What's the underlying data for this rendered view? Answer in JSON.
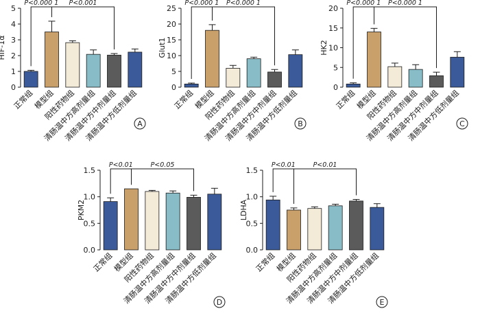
{
  "colors": {
    "group_fills": [
      "#3b5a9a",
      "#c9a06a",
      "#f3ead8",
      "#88bcc6",
      "#5b5b5b",
      "#3b5a9a"
    ],
    "bar_outline": "#1a1a1a",
    "axis": "#1a1a1a"
  },
  "chart_data": [
    {
      "type": "bar",
      "panel": "A",
      "ylabel": "HIF-1α",
      "categories": [
        "正常组",
        "模型组",
        "阳性药物组",
        "清肠温中方高剂量组",
        "清肠温中方中剂量组",
        "清肠温中方低剂量组"
      ],
      "values": [
        1.0,
        3.5,
        2.82,
        2.08,
        2.03,
        2.22
      ],
      "errors": [
        0.07,
        0.68,
        0.12,
        0.28,
        0.1,
        0.2
      ],
      "ylim": [
        0,
        5
      ],
      "yticks": [
        0,
        1,
        2,
        3,
        4,
        5
      ],
      "annotations": [
        {
          "text": "P<0.000 1",
          "from": 0,
          "to": 1
        },
        {
          "text": "P<0.001",
          "from": 1,
          "to": 4
        }
      ]
    },
    {
      "type": "bar",
      "panel": "B",
      "ylabel": "Glut1",
      "categories": [
        "正常组",
        "模型组",
        "阳性药物组",
        "清肠温中方高剂量组",
        "清肠温中方中剂量组",
        "清肠温中方低剂量组"
      ],
      "values": [
        1.0,
        18.0,
        6.0,
        9.0,
        4.8,
        10.3
      ],
      "errors": [
        0.3,
        1.8,
        0.9,
        0.5,
        0.8,
        1.5
      ],
      "ylim": [
        0,
        25
      ],
      "yticks": [
        0,
        5,
        10,
        15,
        20,
        25
      ],
      "annotations": [
        {
          "text": "P<0.000 1",
          "from": 0,
          "to": 1
        },
        {
          "text": "P<0.000 1",
          "from": 1,
          "to": 4
        }
      ]
    },
    {
      "type": "bar",
      "panel": "C",
      "ylabel": "HK2",
      "categories": [
        "正常组",
        "模型组",
        "阳性药物组",
        "清肠温中方高剂量组",
        "清肠温中方中剂量组",
        "清肠温中方低剂量组"
      ],
      "values": [
        0.8,
        14.0,
        5.2,
        4.5,
        2.9,
        7.6
      ],
      "errors": [
        0.3,
        0.9,
        0.9,
        1.2,
        0.9,
        1.4
      ],
      "ylim": [
        0,
        20
      ],
      "yticks": [
        0,
        5,
        10,
        15,
        20
      ],
      "annotations": [
        {
          "text": "P<0.000 1",
          "from": 0,
          "to": 1
        },
        {
          "text": "P<0.000 1",
          "from": 1,
          "to": 4
        }
      ]
    },
    {
      "type": "bar",
      "panel": "D",
      "ylabel": "PKM2",
      "categories": [
        "正常组",
        "模型组",
        "阳性药物组",
        "清肠温中方高剂量组",
        "清肠温中方中剂量组",
        "清肠温中方低剂量组"
      ],
      "values": [
        0.91,
        1.15,
        1.1,
        1.07,
        0.99,
        1.05
      ],
      "errors": [
        0.07,
        0.0,
        0.02,
        0.04,
        0.04,
        0.11
      ],
      "ylim": [
        0,
        1.5
      ],
      "yticks": [
        0,
        0.5,
        1.0,
        1.5
      ],
      "annotations": [
        {
          "text": "P<0.01",
          "from": 0,
          "to": 1
        },
        {
          "text": "P<0.05",
          "from": 1,
          "to": 4
        }
      ]
    },
    {
      "type": "bar",
      "panel": "E",
      "ylabel": "LDHA",
      "categories": [
        "正常组",
        "模型组",
        "阳性药物组",
        "清肠温中方高剂量组",
        "清肠温中方中剂量组",
        "清肠温中方低剂量组"
      ],
      "values": [
        0.94,
        0.75,
        0.78,
        0.83,
        0.92,
        0.8
      ],
      "errors": [
        0.07,
        0.04,
        0.03,
        0.03,
        0.03,
        0.07
      ],
      "ylim": [
        0,
        1.5
      ],
      "yticks": [
        0,
        0.5,
        1.0,
        1.5
      ],
      "annotations": [
        {
          "text": "P<0.01",
          "from": 0,
          "to": 1
        },
        {
          "text": "P<0.01",
          "from": 1,
          "to": 4
        }
      ]
    }
  ]
}
